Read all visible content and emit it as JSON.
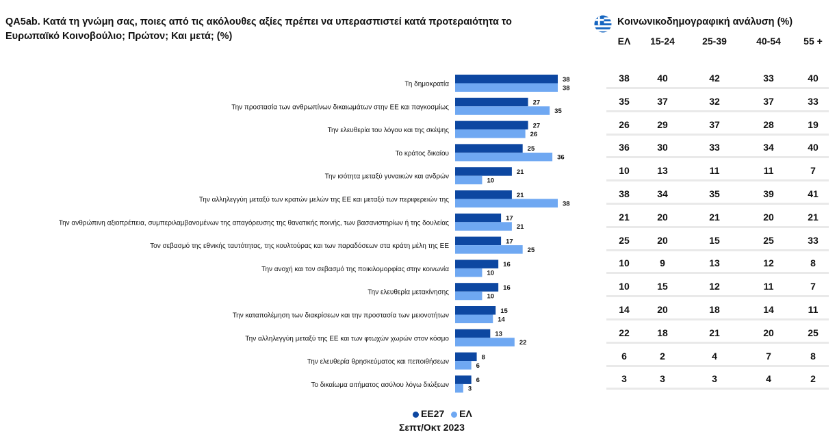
{
  "question": "QA5ab. Κατά τη γνώμη σας, ποιες από τις ακόλουθες αξίες πρέπει να υπερασπιστεί κατά προτεραιότητα το Ευρωπαϊκό Κοινοβούλιο; Πρώτον; Και μετά; (%)",
  "colors": {
    "eu27": "#0d47a1",
    "el": "#6fa8f2"
  },
  "chart_data": {
    "type": "bar",
    "orientation": "horizontal",
    "categories": [
      "Τη δημοκρατία",
      "Την προστασία των ανθρωπίνων δικαιωμάτων στην ΕΕ και παγκοσμίως",
      "Την ελευθερία του λόγου και της σκέψης",
      "Το κράτος δικαίου",
      "Την ισότητα μεταξύ γυναικών και ανδρών",
      "Την αλληλεγγύη μεταξύ των κρατών μελών της ΕΕ και μεταξύ των περιφερειών της",
      "Την ανθρώπινη αξιοπρέπεια, συμπεριλαμβανομένων της απαγόρευσης της θανατικής ποινής, των βασανιστηρίων ή της δουλείας",
      "Τον σεβασμό της εθνικής ταυτότητας, της κουλτούρας και των παραδόσεων στα κράτη μέλη της ΕΕ",
      "Την ανοχή και τον σεβασμό της ποικιλομορφίας στην κοινωνία",
      "Την ελευθερία μετακίνησης",
      "Την καταπολέμηση των διακρίσεων και την προστασία των μειονοτήτων",
      "Την αλληλεγγύη μεταξύ της ΕΕ και των φτωχών χωρών στον κόσμο",
      "Την ελευθερία θρησκεύματος και πεποιθήσεων",
      "Το δικαίωμα αιτήματος ασύλου λόγω διώξεων"
    ],
    "series": [
      {
        "name": "ΕΕ27",
        "values": [
          38,
          27,
          27,
          25,
          21,
          21,
          17,
          17,
          16,
          16,
          15,
          13,
          8,
          6
        ]
      },
      {
        "name": "ΕΛ",
        "values": [
          38,
          35,
          26,
          36,
          10,
          38,
          21,
          25,
          10,
          10,
          14,
          22,
          6,
          3
        ]
      }
    ],
    "xlim": [
      0,
      38
    ],
    "legend_position": "bottom"
  },
  "legend": {
    "eu27": "ΕΕ27",
    "el": "ΕΛ"
  },
  "period": "Σεπτ/Οκτ 2023",
  "table": {
    "title": "Κοινωνικοδημογραφική ανάλυση (%)",
    "flag_icon": "greece-flag-icon",
    "headers": [
      "ΕΛ",
      "15-24",
      "25-39",
      "40-54",
      "55 +"
    ],
    "rows": [
      [
        "38",
        "40",
        "42",
        "33",
        "40"
      ],
      [
        "35",
        "37",
        "32",
        "37",
        "33"
      ],
      [
        "26",
        "29",
        "37",
        "28",
        "19"
      ],
      [
        "36",
        "30",
        "33",
        "34",
        "40"
      ],
      [
        "10",
        "13",
        "11",
        "11",
        "7"
      ],
      [
        "38",
        "34",
        "35",
        "39",
        "41"
      ],
      [
        "21",
        "20",
        "21",
        "20",
        "21"
      ],
      [
        "25",
        "20",
        "15",
        "25",
        "33"
      ],
      [
        "10",
        "9",
        "13",
        "12",
        "8"
      ],
      [
        "10",
        "15",
        "12",
        "11",
        "7"
      ],
      [
        "14",
        "20",
        "18",
        "14",
        "11"
      ],
      [
        "22",
        "18",
        "21",
        "20",
        "25"
      ],
      [
        "6",
        "2",
        "4",
        "7",
        "8"
      ],
      [
        "3",
        "3",
        "3",
        "4",
        "2"
      ]
    ]
  }
}
